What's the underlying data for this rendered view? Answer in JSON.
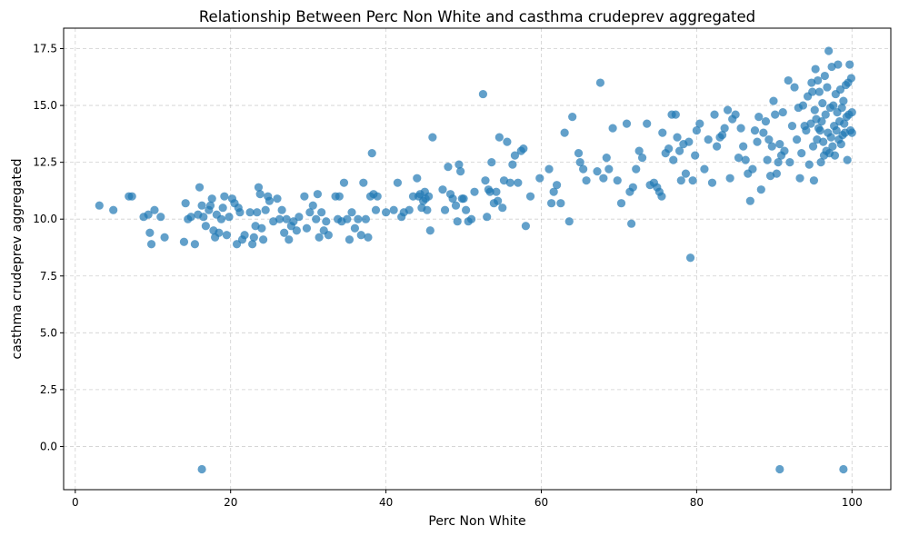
{
  "chart_data": {
    "type": "scatter",
    "title": "Relationship Between Perc Non White and casthma crudeprev aggregated",
    "xlabel": "Perc Non White",
    "ylabel": "casthma crudeprev aggregated",
    "xlim": [
      -1.5,
      105
    ],
    "ylim": [
      -1.9,
      18.4
    ],
    "xticks": [
      0,
      20,
      40,
      60,
      80,
      100
    ],
    "yticks": [
      0.0,
      2.5,
      5.0,
      7.5,
      10.0,
      12.5,
      15.0,
      17.5
    ],
    "ytick_labels": [
      "0.0",
      "2.5",
      "5.0",
      "7.5",
      "10.0",
      "12.5",
      "15.0",
      "17.5"
    ],
    "grid": true,
    "point_color": "#1f77b4",
    "point_alpha": 0.7,
    "points": [
      [
        3.1,
        10.6
      ],
      [
        4.9,
        10.4
      ],
      [
        6.9,
        11.0
      ],
      [
        7.3,
        11.0
      ],
      [
        8.8,
        10.1
      ],
      [
        9.4,
        10.2
      ],
      [
        9.6,
        9.4
      ],
      [
        9.8,
        8.9
      ],
      [
        10.2,
        10.4
      ],
      [
        11.0,
        10.1
      ],
      [
        11.5,
        9.2
      ],
      [
        14.0,
        9.0
      ],
      [
        14.2,
        10.7
      ],
      [
        14.5,
        10.0
      ],
      [
        14.9,
        10.1
      ],
      [
        15.4,
        8.9
      ],
      [
        15.8,
        10.2
      ],
      [
        16.0,
        11.4
      ],
      [
        16.3,
        10.6
      ],
      [
        16.5,
        10.1
      ],
      [
        16.8,
        9.7
      ],
      [
        17.2,
        10.4
      ],
      [
        17.4,
        10.6
      ],
      [
        17.6,
        10.9
      ],
      [
        17.8,
        9.5
      ],
      [
        18.0,
        9.2
      ],
      [
        18.2,
        10.2
      ],
      [
        18.5,
        9.4
      ],
      [
        18.8,
        10.0
      ],
      [
        19.0,
        10.5
      ],
      [
        19.2,
        11.0
      ],
      [
        19.5,
        9.3
      ],
      [
        19.8,
        10.1
      ],
      [
        20.2,
        10.9
      ],
      [
        20.5,
        10.7
      ],
      [
        20.8,
        8.9
      ],
      [
        21.0,
        10.5
      ],
      [
        21.2,
        10.3
      ],
      [
        21.5,
        9.1
      ],
      [
        21.8,
        9.3
      ],
      [
        22.5,
        10.3
      ],
      [
        22.8,
        8.9
      ],
      [
        23.0,
        9.2
      ],
      [
        23.2,
        9.7
      ],
      [
        23.4,
        10.3
      ],
      [
        23.6,
        11.4
      ],
      [
        23.8,
        11.1
      ],
      [
        24.0,
        9.6
      ],
      [
        24.2,
        9.1
      ],
      [
        24.5,
        10.4
      ],
      [
        24.8,
        11.0
      ],
      [
        25.0,
        10.8
      ],
      [
        25.5,
        9.9
      ],
      [
        26.0,
        10.9
      ],
      [
        26.3,
        10.0
      ],
      [
        26.6,
        10.4
      ],
      [
        26.9,
        9.4
      ],
      [
        27.2,
        10.0
      ],
      [
        27.5,
        9.1
      ],
      [
        27.8,
        9.7
      ],
      [
        28.1,
        9.9
      ],
      [
        28.5,
        9.5
      ],
      [
        28.8,
        10.1
      ],
      [
        29.5,
        11.0
      ],
      [
        29.8,
        9.6
      ],
      [
        30.2,
        10.3
      ],
      [
        30.6,
        10.6
      ],
      [
        31.0,
        10.0
      ],
      [
        31.2,
        11.1
      ],
      [
        31.4,
        9.2
      ],
      [
        31.7,
        10.3
      ],
      [
        32.0,
        9.5
      ],
      [
        32.3,
        9.9
      ],
      [
        32.6,
        9.3
      ],
      [
        33.5,
        11.0
      ],
      [
        33.8,
        10.0
      ],
      [
        34.0,
        11.0
      ],
      [
        34.3,
        9.9
      ],
      [
        34.6,
        11.6
      ],
      [
        35.0,
        10.0
      ],
      [
        35.3,
        9.1
      ],
      [
        35.6,
        10.3
      ],
      [
        36.0,
        9.6
      ],
      [
        36.4,
        10.0
      ],
      [
        36.8,
        9.3
      ],
      [
        37.1,
        11.6
      ],
      [
        37.4,
        10.0
      ],
      [
        37.7,
        9.2
      ],
      [
        38.0,
        11.0
      ],
      [
        38.2,
        12.9
      ],
      [
        38.4,
        11.1
      ],
      [
        38.7,
        10.4
      ],
      [
        38.9,
        11.0
      ],
      [
        40.0,
        10.3
      ],
      [
        41.0,
        10.4
      ],
      [
        41.5,
        11.6
      ],
      [
        42.0,
        10.1
      ],
      [
        42.3,
        10.3
      ],
      [
        43.0,
        10.4
      ],
      [
        43.5,
        11.0
      ],
      [
        44.0,
        11.8
      ],
      [
        44.2,
        11.0
      ],
      [
        44.4,
        11.1
      ],
      [
        44.6,
        10.5
      ],
      [
        44.8,
        10.8
      ],
      [
        45.0,
        11.2
      ],
      [
        45.1,
        10.9
      ],
      [
        45.3,
        10.4
      ],
      [
        45.5,
        11.0
      ],
      [
        45.7,
        9.5
      ],
      [
        46.0,
        13.6
      ],
      [
        47.3,
        11.3
      ],
      [
        47.6,
        10.4
      ],
      [
        48.0,
        12.3
      ],
      [
        48.3,
        11.1
      ],
      [
        48.6,
        10.9
      ],
      [
        49.0,
        10.6
      ],
      [
        49.2,
        9.9
      ],
      [
        49.4,
        12.4
      ],
      [
        49.6,
        12.1
      ],
      [
        49.8,
        10.9
      ],
      [
        50.0,
        10.9
      ],
      [
        50.3,
        10.4
      ],
      [
        50.6,
        9.9
      ],
      [
        51.0,
        10.0
      ],
      [
        51.4,
        11.2
      ],
      [
        52.5,
        15.5
      ],
      [
        52.8,
        11.7
      ],
      [
        53.0,
        10.1
      ],
      [
        53.2,
        11.3
      ],
      [
        53.4,
        11.2
      ],
      [
        53.6,
        12.5
      ],
      [
        53.9,
        10.7
      ],
      [
        54.2,
        11.2
      ],
      [
        54.4,
        10.8
      ],
      [
        54.6,
        13.6
      ],
      [
        55.0,
        10.5
      ],
      [
        55.2,
        11.7
      ],
      [
        55.6,
        13.4
      ],
      [
        56.0,
        11.6
      ],
      [
        56.3,
        12.4
      ],
      [
        56.6,
        12.8
      ],
      [
        57.0,
        11.6
      ],
      [
        57.4,
        13.0
      ],
      [
        57.7,
        13.1
      ],
      [
        58.0,
        9.7
      ],
      [
        58.6,
        11.0
      ],
      [
        59.8,
        11.8
      ],
      [
        61.0,
        12.2
      ],
      [
        61.3,
        10.7
      ],
      [
        61.6,
        11.2
      ],
      [
        62.0,
        11.5
      ],
      [
        62.5,
        10.7
      ],
      [
        63.0,
        13.8
      ],
      [
        63.6,
        9.9
      ],
      [
        64.0,
        14.5
      ],
      [
        64.8,
        12.9
      ],
      [
        65.0,
        12.5
      ],
      [
        65.4,
        12.2
      ],
      [
        65.8,
        11.7
      ],
      [
        67.2,
        12.1
      ],
      [
        67.6,
        16.0
      ],
      [
        68.0,
        11.8
      ],
      [
        68.4,
        12.7
      ],
      [
        68.7,
        12.2
      ],
      [
        69.2,
        14.0
      ],
      [
        69.8,
        11.7
      ],
      [
        70.3,
        10.7
      ],
      [
        71.0,
        14.2
      ],
      [
        71.4,
        11.2
      ],
      [
        71.6,
        9.8
      ],
      [
        71.8,
        11.4
      ],
      [
        72.2,
        12.2
      ],
      [
        72.6,
        13.0
      ],
      [
        73.0,
        12.7
      ],
      [
        73.6,
        14.2
      ],
      [
        74.0,
        11.5
      ],
      [
        74.5,
        11.6
      ],
      [
        74.9,
        11.4
      ],
      [
        75.2,
        11.2
      ],
      [
        75.5,
        11.0
      ],
      [
        75.6,
        13.8
      ],
      [
        76.0,
        12.9
      ],
      [
        76.4,
        13.1
      ],
      [
        76.8,
        14.6
      ],
      [
        77.0,
        12.6
      ],
      [
        77.3,
        14.6
      ],
      [
        77.5,
        13.6
      ],
      [
        77.8,
        13.0
      ],
      [
        78.0,
        11.7
      ],
      [
        78.3,
        13.3
      ],
      [
        78.6,
        12.0
      ],
      [
        79.0,
        13.4
      ],
      [
        79.2,
        8.3
      ],
      [
        79.5,
        11.7
      ],
      [
        79.8,
        12.8
      ],
      [
        80.0,
        13.9
      ],
      [
        80.4,
        14.2
      ],
      [
        81.0,
        12.2
      ],
      [
        81.5,
        13.5
      ],
      [
        82.0,
        11.6
      ],
      [
        82.3,
        14.6
      ],
      [
        82.6,
        13.2
      ],
      [
        83.0,
        13.6
      ],
      [
        83.3,
        13.7
      ],
      [
        83.6,
        14.0
      ],
      [
        84.0,
        14.8
      ],
      [
        84.3,
        11.8
      ],
      [
        84.6,
        14.4
      ],
      [
        85.0,
        14.6
      ],
      [
        85.4,
        12.7
      ],
      [
        85.7,
        14.0
      ],
      [
        86.0,
        13.2
      ],
      [
        86.3,
        12.6
      ],
      [
        86.6,
        12.0
      ],
      [
        86.9,
        10.8
      ],
      [
        87.2,
        12.2
      ],
      [
        87.5,
        13.9
      ],
      [
        87.8,
        13.4
      ],
      [
        88.0,
        14.5
      ],
      [
        88.3,
        11.3
      ],
      [
        88.6,
        13.8
      ],
      [
        88.9,
        14.3
      ],
      [
        89.1,
        12.6
      ],
      [
        89.3,
        13.5
      ],
      [
        89.5,
        11.9
      ],
      [
        89.7,
        13.2
      ],
      [
        89.9,
        15.2
      ],
      [
        90.1,
        14.6
      ],
      [
        90.3,
        12.0
      ],
      [
        90.5,
        12.5
      ],
      [
        90.7,
        13.3
      ],
      [
        90.9,
        12.8
      ],
      [
        91.1,
        14.7
      ],
      [
        91.3,
        13.0
      ],
      [
        91.8,
        16.1
      ],
      [
        92.0,
        12.5
      ],
      [
        92.3,
        14.1
      ],
      [
        92.6,
        15.8
      ],
      [
        92.9,
        13.5
      ],
      [
        93.1,
        14.9
      ],
      [
        93.3,
        11.8
      ],
      [
        93.5,
        12.9
      ],
      [
        93.7,
        15.0
      ],
      [
        93.9,
        14.1
      ],
      [
        94.1,
        13.9
      ],
      [
        94.3,
        15.4
      ],
      [
        94.5,
        12.4
      ],
      [
        94.7,
        14.2
      ],
      [
        94.8,
        16.0
      ],
      [
        94.9,
        15.6
      ],
      [
        95.0,
        13.2
      ],
      [
        95.1,
        11.7
      ],
      [
        95.2,
        14.8
      ],
      [
        95.3,
        16.6
      ],
      [
        95.4,
        14.4
      ],
      [
        95.5,
        13.5
      ],
      [
        95.6,
        16.1
      ],
      [
        95.7,
        14.0
      ],
      [
        95.8,
        15.6
      ],
      [
        95.9,
        13.9
      ],
      [
        96.0,
        12.5
      ],
      [
        96.1,
        14.3
      ],
      [
        96.2,
        15.1
      ],
      [
        96.3,
        13.4
      ],
      [
        96.4,
        12.8
      ],
      [
        96.5,
        16.3
      ],
      [
        96.6,
        14.6
      ],
      [
        96.7,
        13.0
      ],
      [
        96.8,
        15.8
      ],
      [
        96.9,
        13.8
      ],
      [
        97.0,
        17.4
      ],
      [
        97.1,
        12.9
      ],
      [
        97.2,
        14.9
      ],
      [
        97.3,
        13.6
      ],
      [
        97.4,
        16.7
      ],
      [
        97.5,
        13.2
      ],
      [
        97.6,
        15.0
      ],
      [
        97.7,
        14.1
      ],
      [
        97.8,
        12.8
      ],
      [
        97.9,
        15.5
      ],
      [
        98.0,
        13.9
      ],
      [
        98.1,
        14.7
      ],
      [
        98.2,
        16.8
      ],
      [
        98.3,
        13.5
      ],
      [
        98.4,
        14.3
      ],
      [
        98.5,
        15.7
      ],
      [
        98.6,
        13.3
      ],
      [
        98.7,
        14.9
      ],
      [
        98.8,
        13.7
      ],
      [
        98.9,
        15.2
      ],
      [
        99.0,
        14.2
      ],
      [
        99.1,
        13.8
      ],
      [
        99.2,
        15.9
      ],
      [
        99.3,
        14.5
      ],
      [
        99.4,
        12.6
      ],
      [
        99.5,
        16.0
      ],
      [
        99.6,
        14.6
      ],
      [
        99.7,
        16.8
      ],
      [
        99.8,
        13.9
      ],
      [
        99.9,
        16.2
      ],
      [
        100.0,
        14.7
      ],
      [
        100.0,
        13.8
      ],
      [
        16.3,
        -1.0
      ],
      [
        90.7,
        -1.0
      ],
      [
        98.9,
        -1.0
      ]
    ]
  }
}
